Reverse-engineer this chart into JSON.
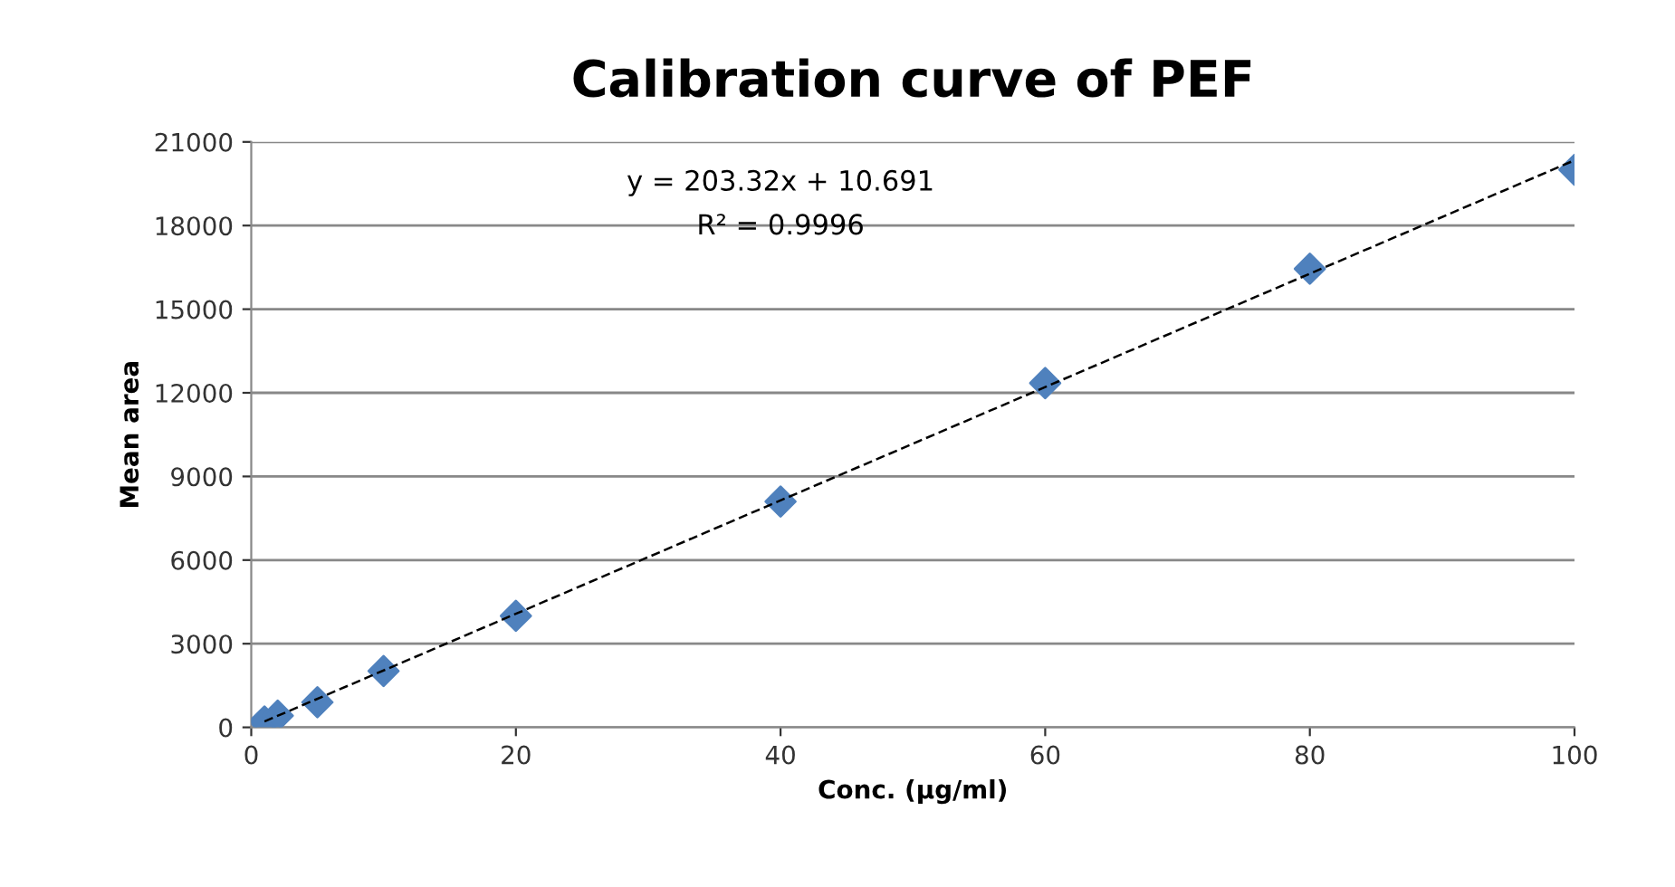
{
  "chart_data": {
    "type": "scatter",
    "title": "Calibration curve of PEF",
    "xlabel": "Conc. (µg/ml)",
    "ylabel": "Mean area",
    "series": [
      {
        "color": "#4f81bd",
        "marker": "diamond",
        "x": [
          1,
          2,
          5,
          10,
          20,
          40,
          60,
          80,
          100
        ],
        "values": [
          210,
          420,
          900,
          2020,
          4000,
          8100,
          12350,
          16450,
          20000
        ]
      },
      {
        "type": "line",
        "color": "#000000",
        "line_style": "dashed",
        "marker": "none",
        "x": [
          1,
          100
        ],
        "values": [
          210,
          20340
        ]
      }
    ],
    "annotations": [
      "y = 203.32x + 10.691",
      "R² = 0.9996"
    ],
    "xlim": [
      0,
      100
    ],
    "xticks": [
      0,
      20,
      40,
      60,
      80,
      100
    ],
    "ylim": [
      0,
      21000
    ],
    "yticks": [
      0,
      3000,
      6000,
      9000,
      12000,
      15000,
      18000,
      21000
    ],
    "grid": "y",
    "legend": false
  }
}
